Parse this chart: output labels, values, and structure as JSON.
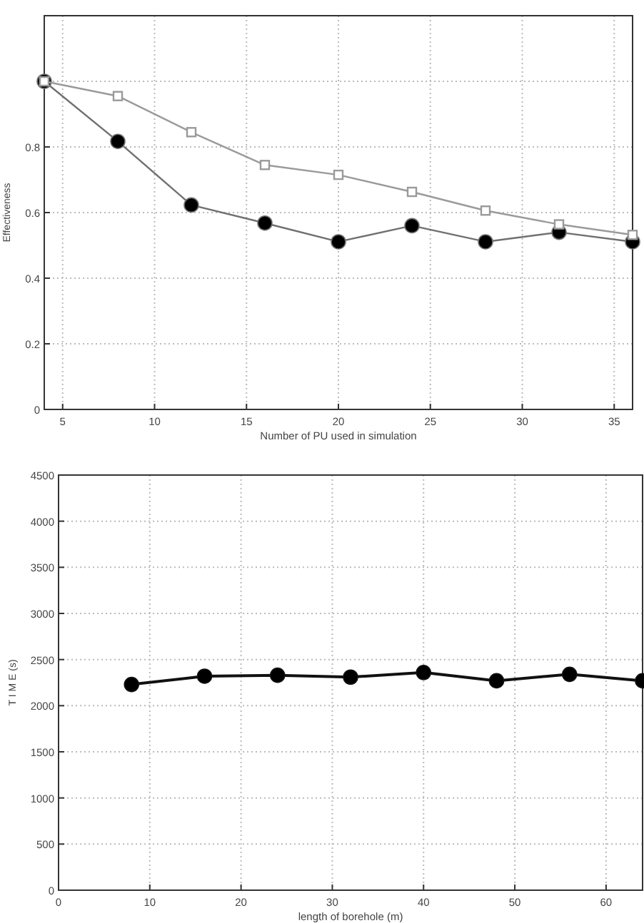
{
  "chart_data": [
    {
      "type": "line",
      "xlabel": "Number of PU used in simulation",
      "ylabel": "Effectiveness",
      "x": [
        4,
        8,
        12,
        16,
        20,
        24,
        28,
        32,
        36
      ],
      "xlim": [
        4,
        36
      ],
      "xticks": [
        5,
        10,
        15,
        20,
        25,
        30,
        35
      ],
      "ylim": [
        0,
        1.2
      ],
      "yticks": [
        0,
        0.2,
        0.4,
        0.6,
        0.8,
        {
          "value": 1,
          "label": null
        }
      ],
      "grid": true,
      "series": [
        {
          "color": "#9a9a9a",
          "marker": "square",
          "values": [
            1.0,
            0.955,
            0.845,
            0.745,
            0.715,
            0.663,
            0.606,
            0.564,
            0.532
          ]
        },
        {
          "color": "#707070",
          "marker": "circle",
          "values": [
            1.0,
            0.817,
            0.623,
            0.568,
            0.511,
            0.56,
            0.511,
            0.54,
            0.511
          ]
        }
      ]
    },
    {
      "type": "line",
      "xlabel": "length of borehole (m)",
      "ylabel": "T I M E (s)",
      "x": [
        8,
        16,
        24,
        32,
        40,
        48,
        56,
        64
      ],
      "xlim": [
        0,
        64
      ],
      "xticks": [
        0,
        10,
        20,
        30,
        40,
        50,
        60
      ],
      "ylim": [
        0,
        4500
      ],
      "yticks": [
        0,
        500,
        1000,
        1500,
        2000,
        2500,
        3000,
        3500,
        4000,
        4500
      ],
      "grid": true,
      "marker": "circle",
      "series": [
        {
          "color": "#111111",
          "values": [
            2230,
            2320,
            2330,
            2310,
            2360,
            2270,
            2340,
            2270
          ]
        }
      ]
    }
  ]
}
